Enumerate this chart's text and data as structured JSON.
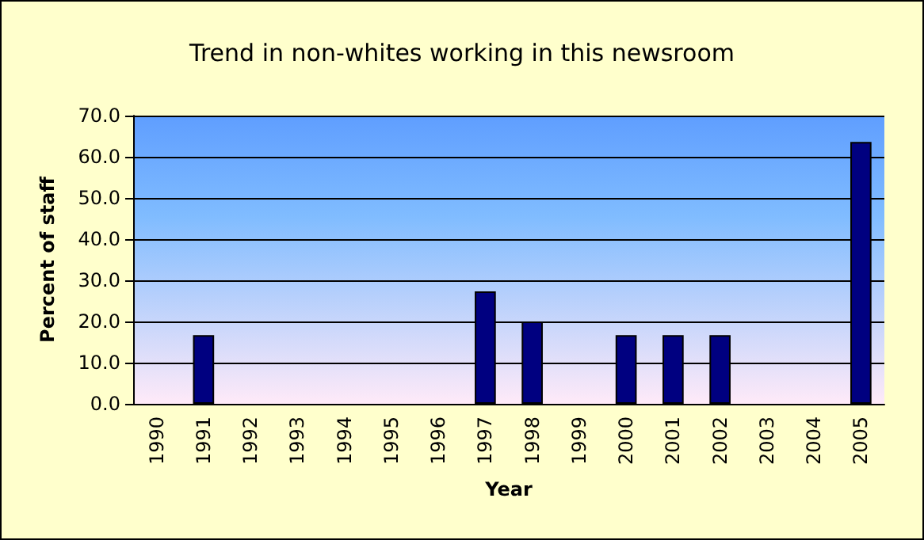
{
  "chart_data": {
    "type": "bar",
    "title": "Trend in non-whites working in this newsroom",
    "xlabel": "Year",
    "ylabel": "Percent of staff",
    "categories": [
      "1990",
      "1991",
      "1992",
      "1993",
      "1994",
      "1995",
      "1996",
      "1997",
      "1998",
      "1999",
      "2000",
      "2001",
      "2002",
      "2003",
      "2004",
      "2005"
    ],
    "series": [
      {
        "color": "#000080",
        "values": [
          null,
          16.7,
          null,
          null,
          null,
          null,
          null,
          27.3,
          20,
          null,
          16.7,
          16.7,
          16.7,
          null,
          null,
          63.6
        ]
      }
    ],
    "ylim": [
      0,
      70
    ],
    "yticks": [
      {
        "value": 0,
        "label": "0.0"
      },
      {
        "value": 10,
        "label": "10.0"
      },
      {
        "value": 20,
        "label": "20.0"
      },
      {
        "value": 30,
        "label": "30.0"
      },
      {
        "value": 40,
        "label": "40.0"
      },
      {
        "value": 50,
        "label": "50.0"
      },
      {
        "value": 60,
        "label": "60.0"
      },
      {
        "value": 70,
        "label": "70.0"
      }
    ],
    "grid": "y"
  }
}
